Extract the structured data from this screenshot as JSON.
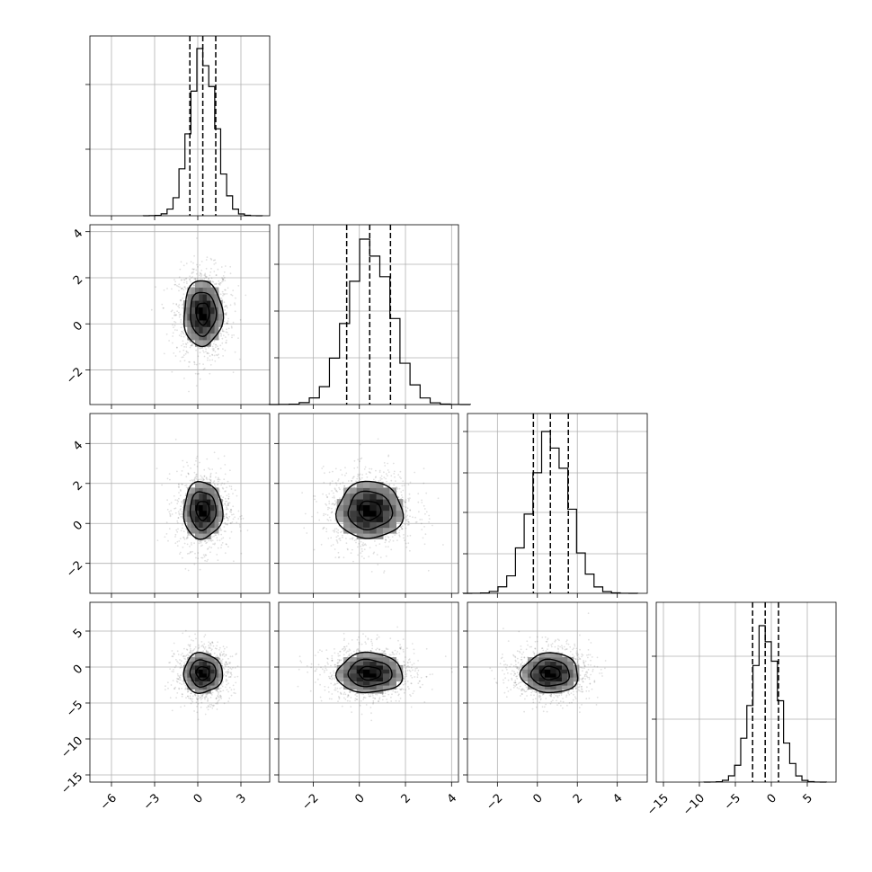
{
  "chart_data": {
    "type": "corner",
    "grid": true,
    "parameters": [
      {
        "range": [
          -7.5,
          5.0
        ],
        "ticks": [
          -6,
          -3,
          0,
          3
        ],
        "tick_labels": [
          "−6",
          "−3",
          "0",
          "3"
        ],
        "median": 0.35,
        "std": 0.9,
        "quantiles": [
          -0.55,
          0.35,
          1.25
        ],
        "hist_peak": 0.93
      },
      {
        "range": [
          -3.5,
          4.3
        ],
        "ticks": [
          -2,
          0,
          2,
          4
        ],
        "tick_labels": [
          "−2",
          "0",
          "2",
          "4"
        ],
        "median": 0.45,
        "std": 0.95,
        "quantiles": [
          -0.55,
          0.45,
          1.35
        ],
        "hist_peak": 0.92
      },
      {
        "range": [
          -3.5,
          5.5
        ],
        "ticks": [
          -2,
          0,
          2,
          4
        ],
        "tick_labels": [
          "−2",
          "0",
          "2",
          "4"
        ],
        "median": 0.65,
        "std": 0.95,
        "quantiles": [
          -0.2,
          0.65,
          1.55
        ],
        "hist_peak": 0.9
      },
      {
        "range": [
          -16.0,
          9.0
        ],
        "ticks": [
          -15,
          -10,
          -5,
          0,
          5
        ],
        "tick_labels": [
          "−15",
          "−10",
          "−5",
          "0",
          "5"
        ],
        "median": -0.85,
        "std": 1.85,
        "quantiles": [
          -2.6,
          -0.85,
          1.0
        ],
        "hist_peak": 0.87
      }
    ],
    "diagonal_yticks": [
      [
        0.37,
        0.73
      ],
      [
        0.26,
        0.52,
        0.78
      ],
      [
        0.22,
        0.45,
        0.67,
        0.9
      ],
      [
        0.35,
        0.7
      ]
    ],
    "quantile_levels": [
      0.16,
      0.5,
      0.84
    ],
    "contour_levels_sigma": [
      0.5,
      1.0,
      1.5
    ],
    "samples_per_panel": 1100,
    "density_bins": 12,
    "histogram_bins": 20
  }
}
